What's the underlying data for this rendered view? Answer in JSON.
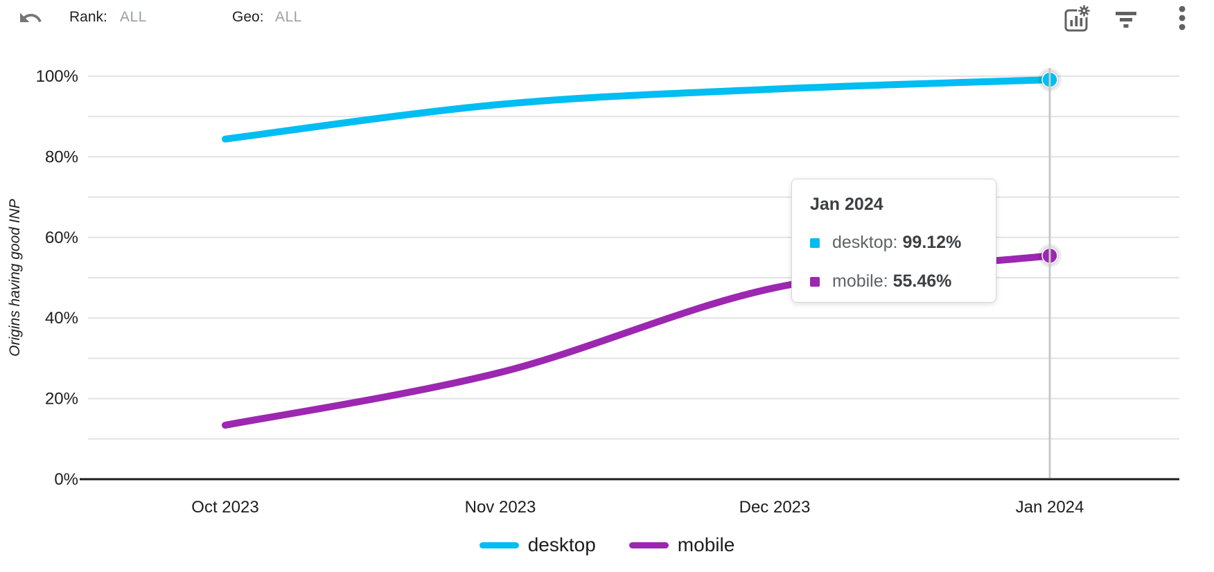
{
  "header": {
    "rank_label": "Rank:",
    "rank_value": "ALL",
    "geo_label": "Geo:",
    "geo_value": "ALL",
    "icons": [
      "undo-icon",
      "chart-settings-icon",
      "filter-icon",
      "kebab-menu-icon"
    ]
  },
  "tooltip": {
    "title": "Jan 2024",
    "rows": [
      {
        "label": "desktop: ",
        "value": "99.12%"
      },
      {
        "label": "mobile: ",
        "value": "55.46%"
      }
    ]
  },
  "chart_data": {
    "type": "line",
    "x": [
      "Oct 2023",
      "Nov 2023",
      "Dec 2023",
      "Jan 2024"
    ],
    "series": [
      {
        "name": "desktop",
        "color": "#00bdf2",
        "values": [
          84.4,
          93.0,
          96.8,
          99.12
        ]
      },
      {
        "name": "mobile",
        "color": "#9c27b0",
        "values": [
          13.4,
          26.5,
          47.5,
          55.46
        ]
      }
    ],
    "ylabel": "Origins having good INP",
    "ylim": [
      0,
      100
    ],
    "yticks": [
      "0%",
      "20%",
      "40%",
      "60%",
      "80%",
      "100%"
    ],
    "grid": "horizontal lines every 10%",
    "legend_position": "bottom",
    "highlighted_x": "Jan 2024",
    "colors": {
      "grid": "#e3e3e3",
      "axis": "#1c1c1c",
      "crosshair": "#c8c8c8"
    }
  }
}
